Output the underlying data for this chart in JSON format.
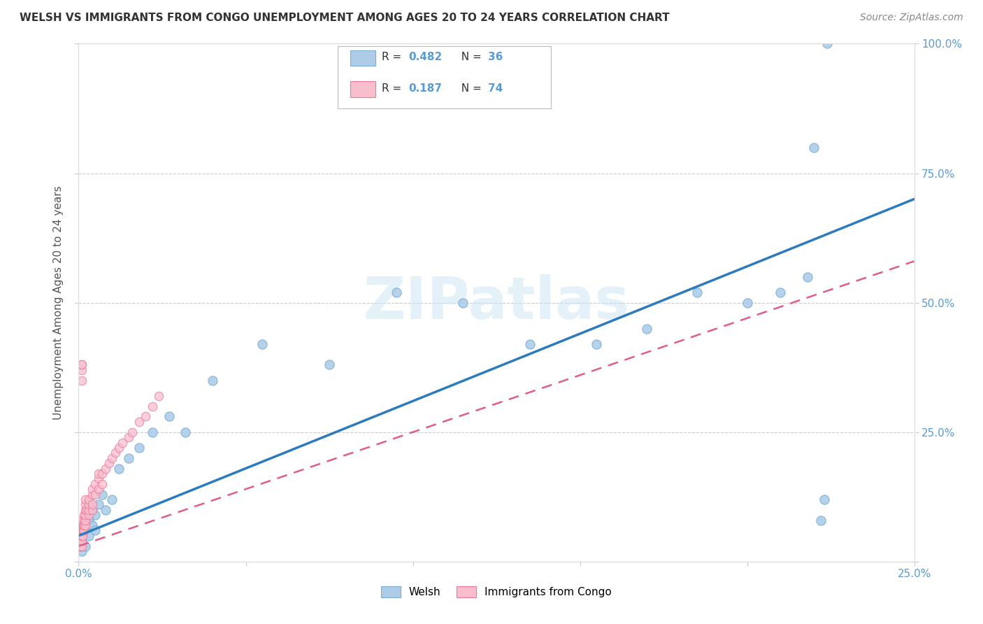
{
  "title": "WELSH VS IMMIGRANTS FROM CONGO UNEMPLOYMENT AMONG AGES 20 TO 24 YEARS CORRELATION CHART",
  "source": "Source: ZipAtlas.com",
  "ylabel": "Unemployment Among Ages 20 to 24 years",
  "xlim": [
    0,
    0.25
  ],
  "ylim": [
    0,
    1.0
  ],
  "welsh_R": 0.482,
  "welsh_N": 36,
  "congo_R": 0.187,
  "congo_N": 74,
  "welsh_color": "#aecce8",
  "welsh_edge_color": "#7aafd4",
  "welsh_line_color": "#2b7bbd",
  "congo_color": "#f9bece",
  "congo_edge_color": "#e8799a",
  "congo_line_color": "#e05c8a",
  "watermark": "ZIPatlas",
  "background_color": "#ffffff",
  "welsh_x": [
    0.001,
    0.001,
    0.002,
    0.002,
    0.003,
    0.003,
    0.004,
    0.004,
    0.005,
    0.005,
    0.006,
    0.007,
    0.008,
    0.01,
    0.012,
    0.015,
    0.018,
    0.022,
    0.027,
    0.032,
    0.04,
    0.055,
    0.075,
    0.095,
    0.115,
    0.135,
    0.155,
    0.17,
    0.185,
    0.2,
    0.21,
    0.218,
    0.22,
    0.222,
    0.223,
    0.224
  ],
  "welsh_y": [
    0.02,
    0.04,
    0.03,
    0.06,
    0.05,
    0.08,
    0.07,
    0.1,
    0.06,
    0.09,
    0.11,
    0.13,
    0.1,
    0.12,
    0.18,
    0.2,
    0.22,
    0.25,
    0.28,
    0.25,
    0.35,
    0.42,
    0.38,
    0.52,
    0.5,
    0.42,
    0.42,
    0.45,
    0.52,
    0.5,
    0.52,
    0.55,
    0.8,
    0.08,
    0.12,
    1.0
  ],
  "congo_x": [
    0.0003,
    0.0003,
    0.0003,
    0.0004,
    0.0004,
    0.0004,
    0.0005,
    0.0005,
    0.0005,
    0.0006,
    0.0006,
    0.0006,
    0.0007,
    0.0007,
    0.0007,
    0.0007,
    0.0008,
    0.0008,
    0.0008,
    0.0009,
    0.0009,
    0.001,
    0.001,
    0.001,
    0.001,
    0.001,
    0.001,
    0.001,
    0.0012,
    0.0012,
    0.0013,
    0.0013,
    0.0015,
    0.0015,
    0.0015,
    0.0015,
    0.002,
    0.002,
    0.002,
    0.002,
    0.002,
    0.002,
    0.0025,
    0.003,
    0.003,
    0.003,
    0.003,
    0.004,
    0.004,
    0.004,
    0.004,
    0.005,
    0.005,
    0.006,
    0.006,
    0.006,
    0.007,
    0.007,
    0.008,
    0.009,
    0.01,
    0.011,
    0.012,
    0.013,
    0.015,
    0.016,
    0.018,
    0.02,
    0.022,
    0.024,
    0.001,
    0.001,
    0.001,
    0.001
  ],
  "congo_y": [
    0.03,
    0.04,
    0.05,
    0.03,
    0.04,
    0.05,
    0.03,
    0.04,
    0.05,
    0.03,
    0.04,
    0.05,
    0.03,
    0.04,
    0.05,
    0.06,
    0.03,
    0.04,
    0.05,
    0.04,
    0.05,
    0.03,
    0.04,
    0.05,
    0.06,
    0.07,
    0.08,
    0.05,
    0.05,
    0.06,
    0.06,
    0.07,
    0.06,
    0.07,
    0.08,
    0.09,
    0.07,
    0.08,
    0.09,
    0.1,
    0.11,
    0.12,
    0.1,
    0.09,
    0.1,
    0.11,
    0.12,
    0.1,
    0.11,
    0.13,
    0.14,
    0.13,
    0.15,
    0.14,
    0.16,
    0.17,
    0.15,
    0.17,
    0.18,
    0.19,
    0.2,
    0.21,
    0.22,
    0.23,
    0.24,
    0.25,
    0.27,
    0.28,
    0.3,
    0.32,
    0.35,
    0.37,
    0.38,
    0.38
  ]
}
